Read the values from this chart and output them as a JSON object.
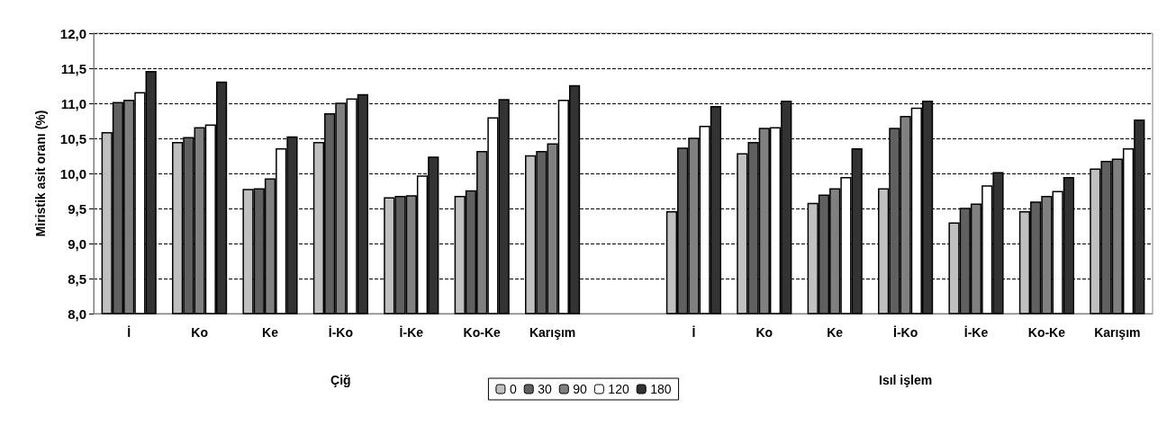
{
  "chart_data": {
    "type": "bar",
    "ylabel": "Miristik asit oranı (%)",
    "categories": [
      "İ",
      "Ko",
      "Ke",
      "İ-Ko",
      "İ-Ke",
      "Ko-Ke",
      "Karışım",
      null,
      "İ",
      "Ko",
      "Ke",
      "İ-Ko",
      "İ-Ke",
      "Ko-Ke",
      "Karışım"
    ],
    "series": [
      {
        "name": "0",
        "color": "#c0c0c0",
        "values": [
          10.59,
          10.45,
          9.78,
          10.45,
          9.66,
          9.68,
          10.26,
          null,
          9.46,
          10.29,
          9.58,
          9.79,
          9.3,
          9.46,
          10.07
        ]
      },
      {
        "name": "30",
        "color": "#606060",
        "values": [
          11.02,
          10.52,
          9.79,
          10.86,
          9.68,
          9.76,
          10.32,
          null,
          10.37,
          10.45,
          9.7,
          10.65,
          9.51,
          9.6,
          10.18
        ]
      },
      {
        "name": "90",
        "color": "#808080",
        "values": [
          11.05,
          10.66,
          9.93,
          11.01,
          9.69,
          10.32,
          10.43,
          null,
          10.51,
          10.65,
          9.79,
          10.82,
          9.57,
          9.68,
          10.21
        ]
      },
      {
        "name": "120",
        "color": "#ffffff",
        "values": [
          11.16,
          10.7,
          10.36,
          11.07,
          9.97,
          10.8,
          11.05,
          null,
          10.68,
          10.66,
          9.95,
          10.94,
          9.83,
          9.75,
          10.36
        ]
      },
      {
        "name": "180",
        "color": "#333333",
        "values": [
          11.46,
          11.31,
          10.53,
          11.13,
          10.24,
          11.06,
          11.26,
          null,
          10.96,
          11.04,
          10.36,
          11.04,
          10.02,
          9.95,
          10.77
        ]
      }
    ],
    "ylim": [
      8,
      12
    ],
    "yticks": [
      {
        "value": 8,
        "label": "8,0"
      },
      {
        "value": 8.5,
        "label": "8,5"
      },
      {
        "value": 9,
        "label": "9,0"
      },
      {
        "value": 9.5,
        "label": "9,5"
      },
      {
        "value": 10,
        "label": "10,0"
      },
      {
        "value": 10.5,
        "label": "10,5"
      },
      {
        "value": 11,
        "label": "11,0"
      },
      {
        "value": 11.5,
        "label": "11,5"
      },
      {
        "value": 12,
        "label": "12,0"
      }
    ],
    "grid": "y",
    "legend": "bottom",
    "annotations": [
      "Çiğ",
      "Isıl işlem"
    ]
  }
}
